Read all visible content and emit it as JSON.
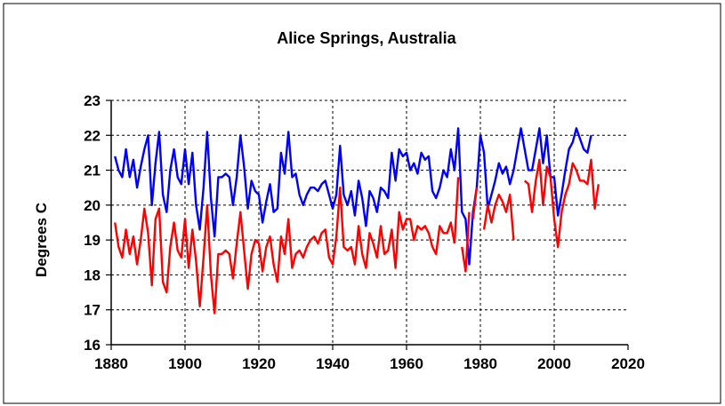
{
  "chart_data": {
    "type": "line",
    "title": "Alice  Springs, Australia",
    "xlabel": "",
    "ylabel": "Degrees C",
    "xlim": [
      1880,
      2020
    ],
    "ylim": [
      16,
      23
    ],
    "x_ticks": [
      "1880",
      "1900",
      "1920",
      "1940",
      "1960",
      "1980",
      "2000",
      "2020"
    ],
    "y_ticks": [
      "16",
      "17",
      "18",
      "19",
      "20",
      "21",
      "22",
      "23"
    ],
    "grid": true,
    "legend": "none",
    "series": [
      {
        "color": "#0000ff",
        "x": [
          1881,
          1882,
          1883,
          1884,
          1885,
          1886,
          1887,
          1888,
          1889,
          1890,
          1891,
          1892,
          1893,
          1894,
          1895,
          1896,
          1897,
          1898,
          1899,
          1900,
          1901,
          1902,
          1903,
          1904,
          1905,
          1906,
          1907,
          1908,
          1909,
          1910,
          1911,
          1912,
          1913,
          1914,
          1915,
          1916,
          1917,
          1918,
          1919,
          1920,
          1921,
          1922,
          1923,
          1924,
          1925,
          1926,
          1927,
          1928,
          1929,
          1930,
          1931,
          1932,
          1933,
          1934,
          1935,
          1936,
          1937,
          1938,
          1939,
          1940,
          1941,
          1942,
          1943,
          1944,
          1945,
          1946,
          1947,
          1948,
          1949,
          1950,
          1951,
          1952,
          1953,
          1954,
          1955,
          1956,
          1957,
          1958,
          1959,
          1960,
          1961,
          1962,
          1963,
          1964,
          1965,
          1966,
          1967,
          1968,
          1969,
          1970,
          1971,
          1972,
          1973,
          1974,
          1975,
          1976,
          1977,
          1978,
          1979,
          1980,
          1981,
          1982,
          1983,
          1984,
          1985,
          1986,
          1987,
          1988,
          1989,
          1990,
          1991,
          1992,
          1993,
          1994,
          1995,
          1996,
          1997,
          1998,
          1999,
          2000,
          2001,
          2002,
          2003,
          2004,
          2005,
          2006,
          2007,
          2008,
          2009,
          2010
        ],
        "y": [
          21.4,
          21.0,
          20.8,
          21.6,
          20.8,
          21.3,
          20.5,
          21.1,
          21.6,
          22.0,
          20.0,
          21.2,
          22.1,
          20.3,
          19.8,
          21.0,
          21.6,
          20.8,
          20.6,
          21.6,
          20.6,
          21.5,
          20.0,
          19.3,
          20.5,
          22.1,
          20.2,
          19.1,
          20.8,
          20.8,
          20.9,
          20.8,
          20.0,
          20.8,
          22.0,
          21.1,
          19.9,
          20.7,
          20.4,
          20.3,
          19.5,
          20.1,
          20.6,
          19.8,
          19.9,
          21.5,
          20.9,
          22.1,
          20.8,
          20.9,
          20.3,
          20.0,
          20.3,
          20.5,
          20.5,
          20.4,
          20.6,
          20.7,
          20.3,
          19.9,
          20.3,
          21.7,
          20.3,
          20.0,
          20.4,
          19.7,
          20.7,
          20.2,
          19.4,
          20.4,
          20.2,
          19.8,
          20.5,
          20.4,
          20.2,
          21.5,
          20.7,
          21.6,
          21.4,
          21.5,
          21.0,
          21.2,
          20.9,
          21.5,
          21.3,
          21.4,
          20.4,
          20.2,
          20.5,
          21.0,
          20.8,
          21.6,
          21.0,
          22.2,
          19.8,
          19.6,
          18.3,
          19.8,
          20.5,
          22.0,
          21.5,
          19.9,
          20.3,
          20.7,
          21.2,
          20.9,
          21.1,
          20.6,
          21.0,
          21.6,
          22.2,
          21.6,
          21.0,
          21.0,
          21.6,
          22.2,
          21.2,
          22.0,
          20.8,
          20.8,
          19.7,
          20.3,
          21.0,
          21.6,
          21.8,
          22.2,
          21.9,
          21.6,
          21.5,
          22.0
        ]
      },
      {
        "color": "#ff0000",
        "segments": [
          {
            "x": [
              1881,
              1882,
              1883,
              1884,
              1885,
              1886,
              1887,
              1888,
              1889,
              1890,
              1891,
              1892,
              1893,
              1894,
              1895,
              1896,
              1897,
              1898,
              1899,
              1900,
              1901,
              1902,
              1903,
              1904,
              1905,
              1906,
              1907,
              1908,
              1909,
              1910,
              1911,
              1912,
              1913,
              1914,
              1915,
              1916,
              1917,
              1918,
              1919,
              1920,
              1921,
              1922,
              1923,
              1924,
              1925,
              1926,
              1927,
              1928,
              1929,
              1930,
              1931,
              1932,
              1933,
              1934,
              1935,
              1936,
              1937,
              1938,
              1939,
              1940,
              1941,
              1942,
              1943,
              1944,
              1945,
              1946,
              1947,
              1948,
              1949,
              1950,
              1951,
              1952,
              1953,
              1954,
              1955,
              1956,
              1957,
              1958,
              1959,
              1960,
              1961,
              1962,
              1963,
              1964,
              1965,
              1966,
              1967,
              1968,
              1969,
              1970,
              1971,
              1972,
              1973
            ],
            "y": [
              19.5,
              18.8,
              18.5,
              19.3,
              18.6,
              19.1,
              18.3,
              19.0,
              19.9,
              19.2,
              17.7,
              19.6,
              19.9,
              17.8,
              17.5,
              18.8,
              19.5,
              18.7,
              18.5,
              19.6,
              18.2,
              19.3,
              18.4,
              17.1,
              18.5,
              20.0,
              18.0,
              16.9,
              18.6,
              18.6,
              18.7,
              18.6,
              17.9,
              18.9,
              19.8,
              18.7,
              17.6,
              18.6,
              19.0,
              18.9,
              18.1,
              18.8,
              19.1,
              18.3,
              17.8,
              19.1,
              18.6,
              19.6,
              18.2,
              18.6,
              18.7,
              18.5,
              18.8,
              19.0,
              19.1,
              18.9,
              19.2,
              19.3,
              18.5,
              18.3,
              19.1,
              20.5,
              18.8,
              18.7,
              18.8,
              18.3,
              19.4,
              18.6,
              18.2,
              19.2,
              18.9,
              18.5,
              19.4,
              18.6,
              18.7,
              19.3,
              18.2,
              19.8,
              19.3,
              19.6,
              19.6,
              19.0,
              19.4,
              19.3,
              19.4,
              19.2,
              18.8,
              18.6,
              19.4,
              19.2,
              19.2,
              19.5,
              18.9
            ]
          },
          {
            "x": [
              1973,
              1974
            ],
            "y": [
              18.9,
              20.8
            ]
          },
          {
            "x": [
              1975,
              1976,
              1977
            ],
            "y": [
              18.8,
              18.1,
              19.8
            ]
          },
          {
            "x": [
              1978,
              1979
            ],
            "y": [
              19.6,
              20.5
            ]
          },
          {
            "x": [
              1981,
              1982,
              1983,
              1984,
              1985,
              1986,
              1987,
              1988,
              1989
            ],
            "y": [
              19.3,
              20.0,
              19.5,
              20.0,
              20.3,
              20.1,
              19.8,
              20.3,
              19.0
            ]
          },
          {
            "x": [
              1992,
              1993,
              1994,
              1995,
              1996,
              1997,
              1998,
              1999,
              2000,
              2001,
              2002,
              2003,
              2004,
              2005,
              2006,
              2007,
              2008,
              2009,
              2010,
              2011,
              2012
            ],
            "y": [
              20.7,
              20.6,
              19.8,
              20.7,
              21.3,
              20.0,
              21.1,
              20.8,
              19.6,
              18.8,
              19.8,
              20.3,
              20.6,
              21.2,
              21.0,
              20.7,
              20.7,
              20.6,
              21.3,
              19.9,
              20.6
            ]
          }
        ]
      }
    ]
  }
}
